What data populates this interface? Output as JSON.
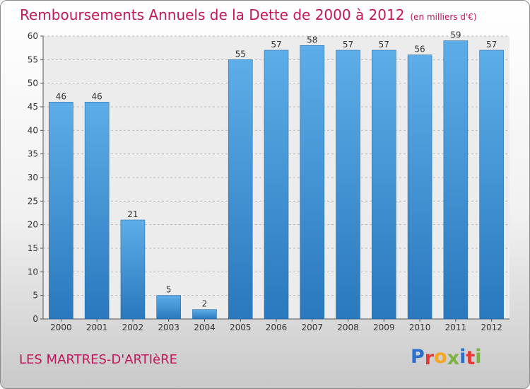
{
  "chart_data": {
    "type": "bar",
    "title": "Remboursements Annuels de la Dette de 2000 à 2012",
    "unit_label": "(en milliers d'€)",
    "categories": [
      "2000",
      "2001",
      "2002",
      "2003",
      "2004",
      "2005",
      "2006",
      "2007",
      "2008",
      "2009",
      "2010",
      "2011",
      "2012"
    ],
    "values": [
      46,
      46,
      21,
      5,
      2,
      55,
      57,
      58,
      57,
      57,
      56,
      59,
      57
    ],
    "ylim": [
      0,
      60
    ],
    "yticks": [
      0,
      5,
      10,
      15,
      20,
      25,
      30,
      35,
      40,
      45,
      50,
      55,
      60
    ],
    "grid": true,
    "bar_color": "#3f8fd2",
    "xlabel": "",
    "ylabel": ""
  },
  "footer": {
    "commune": "LES MARTRES-D'ARTIèRE",
    "logo_letters": [
      "P",
      "r",
      "o",
      "x",
      "i",
      "t",
      "i"
    ],
    "logo_colors": [
      "#2a6fc9",
      "#e53935",
      "#f5a623",
      "#7cb342",
      "#2a6fc9",
      "#e53935",
      "#7cb342"
    ]
  },
  "colors": {
    "title": "#c2185b",
    "grid": "#bbbbbb"
  }
}
